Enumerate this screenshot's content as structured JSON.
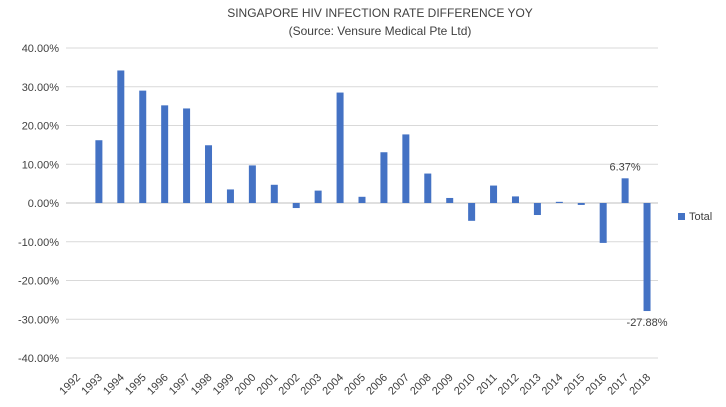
{
  "chart_data": {
    "type": "bar",
    "title": "SINGAPORE HIV INFECTION RATE DIFFERENCE YOY",
    "subtitle": "(Source: Vensure Medical Pte Ltd)",
    "xlabel": "",
    "ylabel": "",
    "ylim": [
      -40,
      40
    ],
    "ytick_step": 10,
    "grid": true,
    "legend_position": "right",
    "bar_color": "#4472c4",
    "categories": [
      "1992",
      "1993",
      "1994",
      "1995",
      "1996",
      "1997",
      "1998",
      "1999",
      "2000",
      "2001",
      "2002",
      "2003",
      "2004",
      "2005",
      "2006",
      "2007",
      "2008",
      "2009",
      "2010",
      "2011",
      "2012",
      "2013",
      "2014",
      "2015",
      "2016",
      "2017",
      "2018"
    ],
    "series": [
      {
        "name": "Total",
        "values": [
          null,
          16.2,
          34.2,
          29.0,
          25.2,
          24.4,
          14.9,
          3.5,
          9.7,
          4.7,
          -1.3,
          3.2,
          28.5,
          1.6,
          13.1,
          17.7,
          7.6,
          1.3,
          -4.6,
          4.5,
          1.7,
          -3.1,
          0.3,
          -0.5,
          -10.3,
          6.37,
          -27.88
        ]
      }
    ],
    "data_labels": [
      {
        "category": "2017",
        "text": "6.37%"
      },
      {
        "category": "2018",
        "text": "-27.88%"
      }
    ]
  }
}
